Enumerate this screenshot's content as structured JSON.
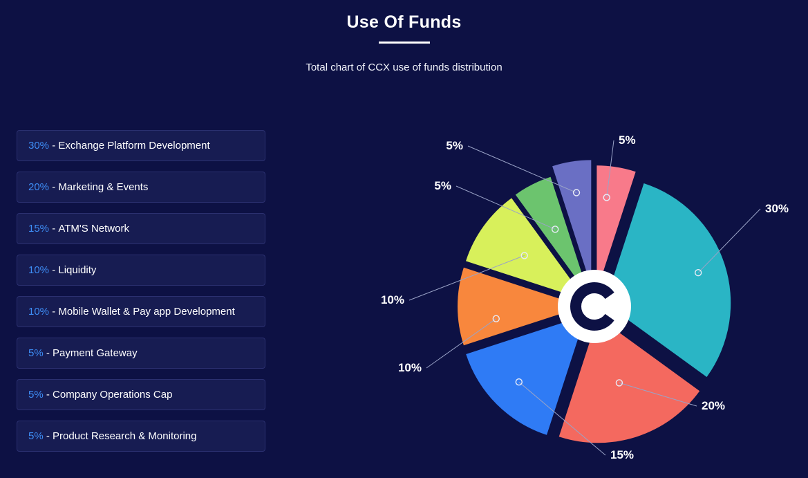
{
  "header": {
    "title": "Use Of Funds",
    "subtitle": "Total chart of CCX use of funds distribution"
  },
  "legend": {
    "separator": " - ",
    "items": [
      {
        "percent": "30%",
        "label": "Exchange Platform Development"
      },
      {
        "percent": "20%",
        "label": "Marketing & Events"
      },
      {
        "percent": "15%",
        "label": "ATM'S Network"
      },
      {
        "percent": "10%",
        "label": "Liquidity"
      },
      {
        "percent": "10%",
        "label": "Mobile Wallet & Pay app Development"
      },
      {
        "percent": "5%",
        "label": "Payment Gateway"
      },
      {
        "percent": "5%",
        "label": "Company Operations Cap"
      },
      {
        "percent": "5%",
        "label": "Product Research & Monitoring"
      }
    ]
  },
  "chart_data": {
    "type": "pie",
    "title": "Use Of Funds",
    "subtitle": "Total chart of CCX use of funds distribution",
    "unit": "%",
    "start_angle_deg": 18,
    "clockwise": true,
    "exploded": true,
    "center_logo_letter": "C",
    "slices": [
      {
        "label": "Exchange Platform Development",
        "value": 30,
        "display": "30%",
        "color": "#2ab5c5"
      },
      {
        "label": "Marketing & Events",
        "value": 20,
        "display": "20%",
        "color": "#f4695f"
      },
      {
        "label": "ATM'S Network",
        "value": 15,
        "display": "15%",
        "color": "#2f7bf5"
      },
      {
        "label": "Liquidity",
        "value": 10,
        "display": "10%",
        "color": "#f8873d"
      },
      {
        "label": "Mobile Wallet & Pay app Development",
        "value": 10,
        "display": "10%",
        "color": "#d8f05b"
      },
      {
        "label": "Payment Gateway",
        "value": 5,
        "display": "5%",
        "color": "#6cc46e"
      },
      {
        "label": "Company Operations Cap",
        "value": 5,
        "display": "5%",
        "color": "#6a6fc4"
      },
      {
        "label": "Product Research & Monitoring",
        "value": 5,
        "display": "5%",
        "color": "#f87a8a"
      }
    ],
    "colors": {
      "background": "#0d1144",
      "accent_blue": "#3e8ef7",
      "label_text": "#ffffff",
      "leader_line": "#9aa3c7",
      "legend_item_background": "#171c52",
      "legend_item_border": "#2b3070"
    }
  }
}
